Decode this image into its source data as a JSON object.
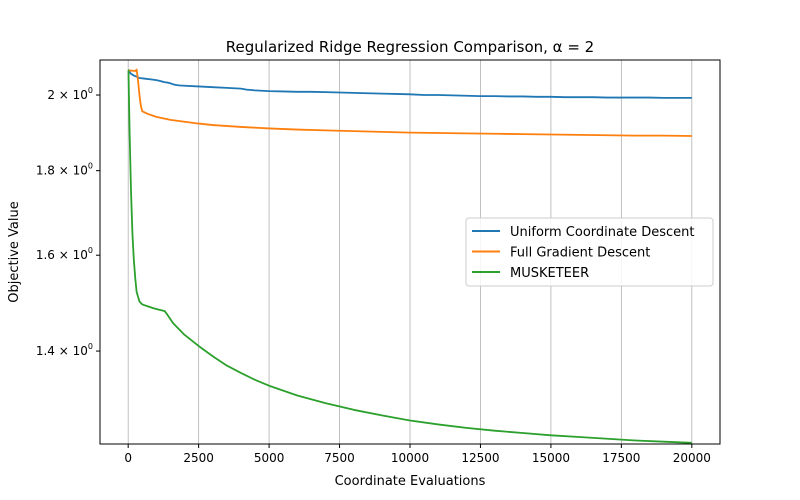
{
  "chart_data": {
    "type": "line",
    "title": "Regularized Ridge Regression Comparison, α = 2",
    "xlabel": "Coordinate Evaluations",
    "ylabel": "Objective Value",
    "yscale": "log",
    "xlim": [
      -1000,
      21000
    ],
    "ylim": [
      1.23,
      2.1
    ],
    "x_ticks": [
      0,
      2500,
      5000,
      7500,
      10000,
      12500,
      15000,
      17500,
      20000
    ],
    "y_ticks": [
      {
        "value": 1.4,
        "base": "1.4 × 10",
        "exp": "0"
      },
      {
        "value": 1.6,
        "base": "1.6 × 10",
        "exp": "0"
      },
      {
        "value": 1.8,
        "base": "1.8 × 10",
        "exp": "0"
      },
      {
        "value": 2.0,
        "base": "2 × 10",
        "exp": "0"
      }
    ],
    "grid": "x-major",
    "legend_position": "center-right",
    "series": [
      {
        "name": "Uniform Coordinate Descent",
        "color": "#1f77b4",
        "x": [
          0,
          100,
          200,
          300,
          400,
          600,
          800,
          900,
          1000,
          1100,
          1200,
          1300,
          1400,
          1500,
          1600,
          1700,
          1800,
          2000,
          2500,
          3000,
          3500,
          4000,
          4200,
          4500,
          5000,
          5500,
          6000,
          6500,
          7000,
          7500,
          8000,
          8500,
          9000,
          9500,
          10000,
          10500,
          11000,
          11500,
          12000,
          12500,
          13000,
          13500,
          14000,
          14500,
          15000,
          15500,
          16000,
          16500,
          17000,
          17500,
          18000,
          18500,
          19000,
          19500,
          20000
        ],
        "y": [
          2.07,
          2.06,
          2.055,
          2.052,
          2.048,
          2.046,
          2.044,
          2.043,
          2.042,
          2.04,
          2.038,
          2.036,
          2.035,
          2.033,
          2.03,
          2.028,
          2.027,
          2.026,
          2.024,
          2.022,
          2.02,
          2.018,
          2.015,
          2.013,
          2.011,
          2.01,
          2.009,
          2.009,
          2.008,
          2.007,
          2.006,
          2.005,
          2.004,
          2.003,
          2.002,
          2.0,
          2.0,
          1.999,
          1.998,
          1.997,
          1.997,
          1.996,
          1.996,
          1.995,
          1.995,
          1.994,
          1.994,
          1.994,
          1.993,
          1.993,
          1.993,
          1.993,
          1.992,
          1.992,
          1.992
        ]
      },
      {
        "name": "Full Gradient Descent",
        "color": "#ff7f0e",
        "x": [
          0,
          250,
          300,
          350,
          400,
          450,
          500,
          700,
          1000,
          1500,
          2000,
          2500,
          3000,
          4000,
          5000,
          6000,
          7000,
          8000,
          9000,
          10000,
          11000,
          12000,
          13000,
          14000,
          15000,
          16000,
          17000,
          18000,
          19000,
          20000
        ],
        "y": [
          2.07,
          2.068,
          2.072,
          2.04,
          2.0,
          1.97,
          1.955,
          1.948,
          1.94,
          1.932,
          1.927,
          1.922,
          1.918,
          1.913,
          1.909,
          1.906,
          1.904,
          1.902,
          1.9,
          1.898,
          1.897,
          1.896,
          1.895,
          1.894,
          1.893,
          1.892,
          1.891,
          1.89,
          1.89,
          1.889
        ]
      },
      {
        "name": "MUSKETEER",
        "color": "#2ca02c",
        "x": [
          0,
          10,
          50,
          100,
          150,
          200,
          250,
          300,
          400,
          500,
          700,
          900,
          1100,
          1300,
          1400,
          1600,
          2000,
          2500,
          3000,
          3500,
          4000,
          4500,
          5000,
          6000,
          7000,
          8000,
          9000,
          10000,
          11000,
          12000,
          13000,
          14000,
          15000,
          16000,
          17000,
          18000,
          19000,
          20000
        ],
        "y": [
          2.07,
          2.07,
          1.9,
          1.75,
          1.65,
          1.59,
          1.55,
          1.52,
          1.5,
          1.494,
          1.49,
          1.486,
          1.483,
          1.48,
          1.472,
          1.455,
          1.432,
          1.41,
          1.39,
          1.372,
          1.358,
          1.345,
          1.334,
          1.316,
          1.302,
          1.29,
          1.28,
          1.271,
          1.264,
          1.258,
          1.253,
          1.249,
          1.245,
          1.242,
          1.239,
          1.236,
          1.234,
          1.232
        ]
      }
    ]
  }
}
